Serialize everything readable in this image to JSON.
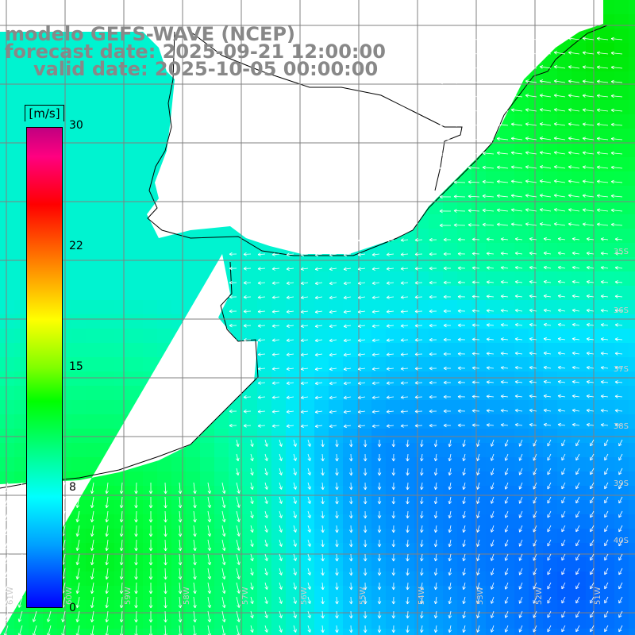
{
  "title": {
    "model": "modelo GEFS-WAVE (NCEP)",
    "forecast": "forecast date: 2025-09-21 12:00:00",
    "valid": "valid date: 2025-10-05 00:00:00"
  },
  "colorbar": {
    "unit": "[m/s]",
    "ticks": [
      "30",
      "22",
      "15",
      "8",
      "0"
    ],
    "colors": [
      "#0000ff",
      "#00a0ff",
      "#00ffff",
      "#00ff80",
      "#00ff00",
      "#80ff00",
      "#ffff00",
      "#ff8000",
      "#ff0000",
      "#c00080"
    ]
  },
  "grid": {
    "lat_labels": [
      "35S",
      "36S",
      "37S",
      "38S",
      "39S",
      "40S"
    ],
    "lon_labels": [
      "61W",
      "60W",
      "59W",
      "58W",
      "57W",
      "56W",
      "55W",
      "54W",
      "53W",
      "52W",
      "51W"
    ]
  },
  "colors": {
    "land": "#ffffff",
    "coast": "#000000",
    "grid": "#808080",
    "arrows": "#ffffff",
    "title": "#888888"
  }
}
